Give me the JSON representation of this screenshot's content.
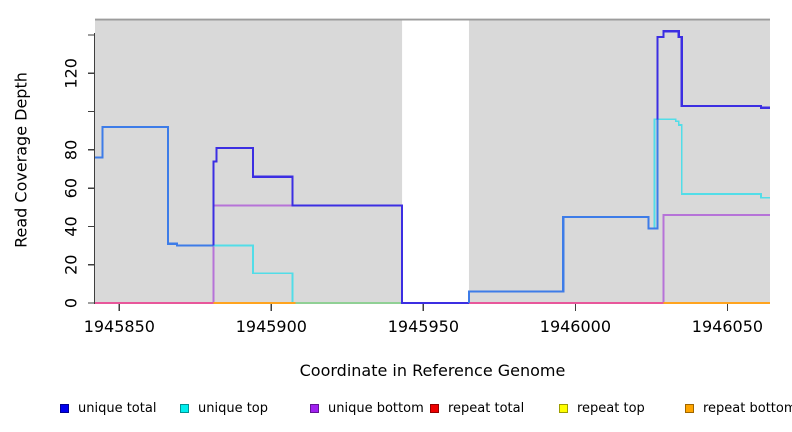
{
  "chart_data": {
    "type": "line",
    "subtype": "step-coverage",
    "title": "",
    "xlabel": "Coordinate in Reference Genome",
    "ylabel": "Read Coverage Depth",
    "xlim": [
      1945842,
      1946064
    ],
    "ylim": [
      0,
      148.9
    ],
    "grid": false,
    "plot_bg": "#d9d9d9",
    "gap_top_line_color": "#9c9c9c",
    "axis_color": "#3f3f3f",
    "x_ticks": [
      {
        "v": 1945850,
        "label": "1945850"
      },
      {
        "v": 1945900,
        "label": "1945900"
      },
      {
        "v": 1945950,
        "label": "1945950"
      },
      {
        "v": 1946000,
        "label": "1946000"
      },
      {
        "v": 1946050,
        "label": "1946050"
      }
    ],
    "y_ticks": [
      {
        "v": 0,
        "label": "0"
      },
      {
        "v": 20,
        "label": "20"
      },
      {
        "v": 40,
        "label": "40"
      },
      {
        "v": 60,
        "label": "60"
      },
      {
        "v": 80,
        "label": "80"
      },
      {
        "v": 100,
        "label": ""
      },
      {
        "v": 120,
        "label": "120"
      },
      {
        "v": 140,
        "label": ""
      }
    ],
    "no_data_region": {
      "x1": 1945943,
      "x2": 1945965
    },
    "series_under": [
      {
        "name": "repeat total",
        "color": "#ee0000",
        "width": 1.7,
        "points": [
          [
            1945842,
            0
          ],
          [
            1946064,
            0
          ]
        ]
      },
      {
        "name": "repeat top",
        "color": "#ffff00",
        "width": 1.7,
        "points": [
          [
            1945842,
            0
          ],
          [
            1946064,
            0
          ]
        ]
      },
      {
        "name": "repeat bottom",
        "color": "#ffa500",
        "width": 1.7,
        "points": [
          [
            1945842,
            0
          ],
          [
            1946064,
            0
          ]
        ]
      },
      {
        "name": "unique bottom",
        "color": "#b673d8",
        "width": 1.8,
        "points": [
          [
            1945842,
            0
          ],
          [
            1945881,
            0
          ],
          [
            1945881,
            51
          ],
          [
            1945943,
            51
          ],
          [
            1945943,
            0
          ],
          [
            1946029,
            0
          ],
          [
            1946029,
            46
          ],
          [
            1946064,
            46
          ]
        ]
      },
      {
        "name": "unique top",
        "color": "#52dde8",
        "width": 1.8,
        "points": [
          [
            1945842,
            76
          ],
          [
            1945844.5,
            76
          ],
          [
            1945844.5,
            92
          ],
          [
            1945866,
            92
          ],
          [
            1945866,
            31
          ],
          [
            1945869,
            31
          ],
          [
            1945869,
            30
          ],
          [
            1945894,
            30
          ],
          [
            1945894,
            15.5
          ],
          [
            1945907,
            15.5
          ],
          [
            1945907,
            0
          ],
          [
            1945965,
            0
          ],
          [
            1945965,
            6
          ],
          [
            1945996,
            6
          ],
          [
            1945996,
            45
          ],
          [
            1946024,
            45
          ],
          [
            1946024,
            39
          ],
          [
            1946026,
            39
          ],
          [
            1946026,
            96
          ],
          [
            1946033,
            96
          ],
          [
            1946033,
            95
          ],
          [
            1946034,
            95
          ],
          [
            1946034,
            93
          ],
          [
            1946035,
            93
          ],
          [
            1946035,
            57
          ],
          [
            1946061,
            57
          ],
          [
            1946061,
            55
          ],
          [
            1946064,
            55
          ]
        ]
      }
    ],
    "zero_overlap_segments": [
      {
        "x1": 1945842,
        "x2": 1945881,
        "color": "#e8579b"
      },
      {
        "x1": 1945881,
        "x2": 1945908,
        "color": "#ffa41f"
      },
      {
        "x1": 1945908,
        "x2": 1945943,
        "color": "#90d095"
      },
      {
        "x1": 1945965,
        "x2": 1946029,
        "color": "#e8579b"
      },
      {
        "x1": 1946029,
        "x2": 1946064,
        "color": "#ffa41f"
      }
    ],
    "series_total": [
      {
        "name": "unique total (coincides with unique top)",
        "color": "#3d7ce8",
        "width": 2.2,
        "points": [
          [
            1945842,
            76
          ],
          [
            1945844.5,
            76
          ],
          [
            1945844.5,
            92
          ],
          [
            1945866,
            92
          ],
          [
            1945866,
            31
          ],
          [
            1945869,
            31
          ],
          [
            1945869,
            30
          ],
          [
            1945881,
            30
          ]
        ]
      },
      {
        "name": "unique total",
        "color": "#3c2ee2",
        "width": 2.2,
        "points": [
          [
            1945881,
            30
          ],
          [
            1945881,
            74
          ],
          [
            1945882,
            74
          ],
          [
            1945882,
            81
          ],
          [
            1945894,
            81
          ],
          [
            1945894,
            66
          ],
          [
            1945907,
            66
          ],
          [
            1945907,
            51
          ],
          [
            1945943,
            51
          ],
          [
            1945943,
            0
          ],
          [
            1945965,
            0
          ]
        ]
      },
      {
        "name": "unique total (coincides with unique top)",
        "color": "#3d7ce8",
        "width": 2.2,
        "points": [
          [
            1945965,
            0
          ],
          [
            1945965,
            6
          ],
          [
            1945996,
            6
          ],
          [
            1945996,
            45
          ],
          [
            1946024,
            45
          ],
          [
            1946024,
            39
          ],
          [
            1946027,
            39
          ],
          [
            1946027,
            96
          ]
        ]
      },
      {
        "name": "unique total",
        "color": "#3c2ee2",
        "width": 2.2,
        "points": [
          [
            1946027,
            96
          ],
          [
            1946027,
            139
          ],
          [
            1946029,
            139
          ],
          [
            1946029,
            142
          ],
          [
            1946034,
            142
          ],
          [
            1946034,
            139
          ],
          [
            1946035,
            139
          ],
          [
            1946035,
            103
          ],
          [
            1946061,
            103
          ],
          [
            1946061,
            102
          ],
          [
            1946064,
            102
          ]
        ]
      }
    ],
    "legend": [
      {
        "label": "unique total",
        "color": "#0000ee"
      },
      {
        "label": "unique top",
        "color": "#00eeee"
      },
      {
        "label": "unique bottom",
        "color": "#a020f0"
      },
      {
        "label": "repeat total",
        "color": "#ee0000"
      },
      {
        "label": "repeat top",
        "color": "#ffff00"
      },
      {
        "label": "repeat bottom",
        "color": "#ffa500"
      }
    ],
    "legend_position": "bottom"
  }
}
